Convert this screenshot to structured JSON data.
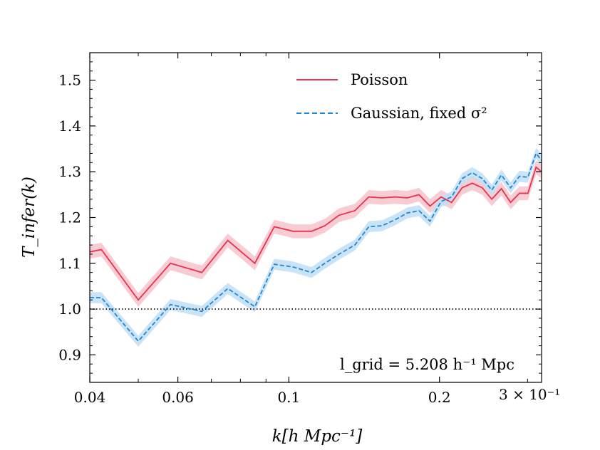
{
  "chart_data": {
    "type": "line",
    "xscale": "log",
    "xlim": [
      0.04,
      0.32
    ],
    "ylim": [
      0.84,
      1.56
    ],
    "xticks": [
      {
        "value": 0.04,
        "label": "0.04"
      },
      {
        "value": 0.06,
        "label": "0.06"
      },
      {
        "value": 0.1,
        "label": "0.1"
      },
      {
        "value": 0.2,
        "label": "0.2"
      }
    ],
    "x_offset_label": "3 × 10⁻¹",
    "yticks": [
      0.9,
      1.0,
      1.1,
      1.2,
      1.3,
      1.4,
      1.5
    ],
    "ytick_labels": [
      "0.9",
      "1.0",
      "1.1",
      "1.2",
      "1.3",
      "1.4",
      "1.5"
    ],
    "xlabel": "k[h Mpc⁻¹]",
    "ylabel": "T_infer(k)",
    "reference_line": {
      "y": 1.0,
      "style": "dotted",
      "color": "#000000"
    },
    "annotation": "l_grid = 5.208 h⁻¹ Mpc",
    "legend_position": "top-right",
    "series": [
      {
        "name": "Poisson",
        "style": "solid",
        "color": "#e8334f",
        "band_color": "#f7c3cb",
        "band_halfwidth": 0.015,
        "x": [
          0.04,
          0.0422,
          0.05,
          0.058,
          0.067,
          0.0755,
          0.0855,
          0.0935,
          0.102,
          0.111,
          0.118,
          0.126,
          0.1355,
          0.1445,
          0.1535,
          0.163,
          0.1725,
          0.182,
          0.1915,
          0.2015,
          0.2115,
          0.222,
          0.2325,
          0.2435,
          0.2545,
          0.266,
          0.2775,
          0.289,
          0.3005,
          0.312,
          0.32
        ],
        "values": [
          1.125,
          1.13,
          1.02,
          1.1,
          1.08,
          1.15,
          1.1,
          1.18,
          1.17,
          1.17,
          1.182,
          1.205,
          1.215,
          1.245,
          1.243,
          1.245,
          1.243,
          1.25,
          1.225,
          1.245,
          1.233,
          1.265,
          1.275,
          1.265,
          1.24,
          1.263,
          1.233,
          1.253,
          1.253,
          1.31,
          1.3
        ]
      },
      {
        "name": "Gaussian, fixed σ²",
        "style": "dashed",
        "color": "#1e88d8",
        "band_color": "#c2def5",
        "band_halfwidth": 0.012,
        "x": [
          0.04,
          0.0422,
          0.05,
          0.058,
          0.067,
          0.0755,
          0.0855,
          0.0935,
          0.102,
          0.111,
          0.118,
          0.126,
          0.1355,
          0.1445,
          0.1535,
          0.163,
          0.1725,
          0.182,
          0.1915,
          0.2015,
          0.2115,
          0.222,
          0.2325,
          0.2435,
          0.2545,
          0.266,
          0.2775,
          0.289,
          0.3005,
          0.312,
          0.32
        ],
        "values": [
          1.025,
          1.025,
          0.93,
          1.01,
          0.995,
          1.045,
          1.005,
          1.098,
          1.092,
          1.08,
          1.1,
          1.12,
          1.14,
          1.18,
          1.182,
          1.195,
          1.21,
          1.215,
          1.192,
          1.235,
          1.245,
          1.285,
          1.298,
          1.285,
          1.26,
          1.293,
          1.265,
          1.29,
          1.288,
          1.34,
          1.325
        ]
      }
    ]
  }
}
